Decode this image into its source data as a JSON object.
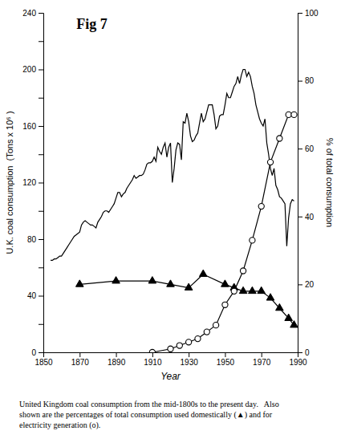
{
  "chart_data": {
    "type": "line",
    "title": "Fig 7",
    "xlabel": "Year",
    "ylabel": "U.K. coal consumption  (Tons x 10⁶ )",
    "y2label": "% of total consumption",
    "caption": "United Kingdom coal consumption from the mid-1800s to the present day.   Also\nshown are the percentages of total consumption used domestically (▲) and for\nelectricity generation (o).",
    "xlim": [
      1850,
      1990
    ],
    "xticks": [
      1850,
      1870,
      1890,
      1910,
      1930,
      1950,
      1970,
      1990
    ],
    "ylim": [
      0,
      240
    ],
    "yticks": [
      0,
      {
        "value": 20,
        "label": null
      },
      40,
      {
        "value": 60,
        "label": null
      },
      80,
      {
        "value": 100,
        "label": null
      },
      120,
      {
        "value": 140,
        "label": null
      },
      160,
      {
        "value": 180,
        "label": null
      },
      200,
      {
        "value": 220,
        "label": null
      },
      240
    ],
    "y2lim": [
      0,
      100
    ],
    "y2ticks": [
      0,
      20,
      40,
      60,
      80,
      100
    ],
    "grid": false,
    "series": [
      {
        "color": "#000000",
        "marker": "none",
        "x": [
          1854,
          1855,
          1856,
          1857,
          1858,
          1859,
          1860,
          1861,
          1862,
          1863,
          1864,
          1865,
          1866,
          1867,
          1868,
          1869,
          1870,
          1871,
          1872,
          1873,
          1874,
          1875,
          1876,
          1877,
          1878,
          1879,
          1880,
          1881,
          1882,
          1883,
          1884,
          1885,
          1886,
          1887,
          1888,
          1889,
          1890,
          1891,
          1892,
          1893,
          1894,
          1895,
          1896,
          1897,
          1898,
          1899,
          1900,
          1901,
          1902,
          1903,
          1904,
          1905,
          1906,
          1907,
          1908,
          1909,
          1910,
          1911,
          1912,
          1913,
          1914,
          1915,
          1916,
          1917,
          1918,
          1919,
          1920,
          1921,
          1922,
          1923,
          1924,
          1925,
          1926,
          1927,
          1928,
          1929,
          1930,
          1931,
          1932,
          1933,
          1934,
          1935,
          1936,
          1937,
          1938,
          1939,
          1940,
          1941,
          1942,
          1943,
          1944,
          1945,
          1946,
          1947,
          1948,
          1949,
          1950,
          1951,
          1952,
          1953,
          1954,
          1955,
          1956,
          1957,
          1958,
          1959,
          1960,
          1961,
          1962,
          1963,
          1964,
          1965,
          1966,
          1967,
          1968,
          1969,
          1970,
          1971,
          1972,
          1973,
          1974,
          1975,
          1976,
          1977,
          1978,
          1979,
          1980,
          1981,
          1982,
          1983,
          1984,
          1985,
          1986,
          1987,
          1988
        ],
        "values": [
          65,
          65,
          66,
          66,
          67,
          68,
          68,
          70,
          72,
          74,
          76,
          78,
          80,
          82,
          83,
          84,
          85,
          90,
          92,
          93,
          92,
          91,
          90,
          90,
          89,
          88,
          92,
          94,
          96,
          99,
          100,
          100,
          99,
          101,
          103,
          105,
          109,
          113,
          113,
          110,
          112,
          113,
          116,
          118,
          120,
          122,
          125,
          123,
          124,
          125,
          125,
          126,
          129,
          133,
          134,
          134,
          135,
          138,
          135,
          145,
          142,
          140,
          145,
          148,
          138,
          145,
          148,
          120,
          130,
          143,
          148,
          147,
          136,
          163,
          162,
          169,
          163,
          153,
          149,
          150,
          153,
          155,
          162,
          169,
          163,
          165,
          170,
          175,
          175,
          175,
          168,
          158,
          160,
          167,
          168,
          168,
          175,
          183,
          180,
          180,
          184,
          188,
          190,
          195,
          190,
          196,
          200,
          200,
          195,
          198,
          195,
          188,
          183,
          175,
          170,
          165,
          162,
          160,
          165,
          148,
          140,
          130,
          125,
          130,
          118,
          115,
          110,
          109,
          107,
          105,
          75,
          95,
          105,
          108,
          107
        ]
      },
      {
        "color": "#000000",
        "marker": "triangle",
        "axis": "y2",
        "x": [
          1870,
          1890,
          1910,
          1920,
          1930,
          1938,
          1950,
          1955,
          1960,
          1965,
          1970,
          1975,
          1980,
          1985,
          1988
        ],
        "values": [
          20,
          21,
          21,
          20,
          19,
          23,
          20,
          19,
          18,
          18,
          18,
          16,
          13,
          10,
          8
        ]
      },
      {
        "color": "#000000",
        "marker": "circle-open",
        "axis": "y2",
        "x": [
          1910,
          1920,
          1925,
          1930,
          1935,
          1940,
          1945,
          1950,
          1955,
          1960,
          1965,
          1970,
          1975,
          1980,
          1985,
          1988
        ],
        "values": [
          0,
          1,
          2,
          3,
          4,
          6,
          8,
          14,
          18,
          24,
          33,
          43,
          56,
          63,
          70,
          70
        ]
      }
    ]
  }
}
